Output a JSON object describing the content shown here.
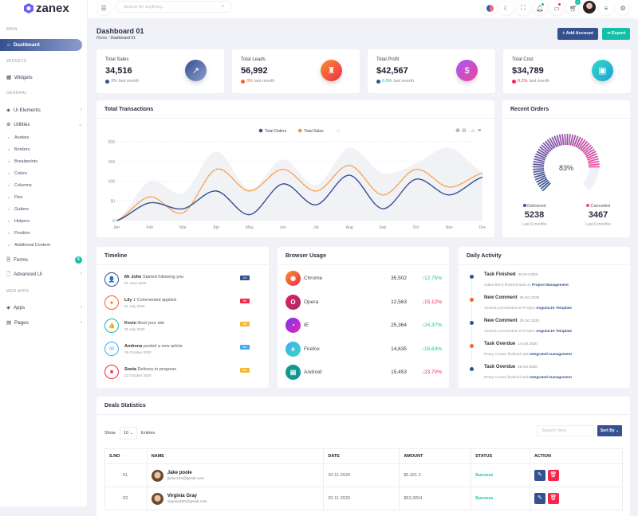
{
  "brand": {
    "name": "zanex",
    "color": "#6c5ffc"
  },
  "colors": {
    "primary": "#35518f",
    "accent": "#f7922d",
    "success": "#13bfa6",
    "danger": "#f3294b"
  },
  "sidebar": {
    "sections": {
      "main": "MAIN",
      "widgets": "WIDGETS",
      "general": "GENERAL",
      "webapps": "WEB APPS"
    },
    "items": {
      "dashboard": "Dashboard",
      "widgets": "Widgets",
      "ui": "Ui Elements",
      "utilities": "Utilities",
      "forms": "Forms",
      "forms_badge": "6",
      "advanced": "Advanced Ui",
      "apps": "Apps",
      "pages": "Pages"
    },
    "utilities_sub": [
      "Avatars",
      "Borders",
      "Breakpoints",
      "Colors",
      "Columns",
      "Flex",
      "Gutters",
      "Helpers",
      "Position",
      "Additional Content"
    ]
  },
  "header": {
    "search_placeholder": "Search for anything...",
    "cart_badge": "5"
  },
  "page": {
    "title": "Dashboard 01",
    "breadcrumb": [
      "Home",
      "Dashboard 01"
    ],
    "add_account": "+ Add Account",
    "export": "Export"
  },
  "stats": [
    {
      "label": "Total Sales",
      "value": "34,516",
      "change": "3%",
      "suffix": "last month",
      "icon": "trending-up-icon"
    },
    {
      "label": "Total Leads",
      "value": "56,992",
      "change": "3%",
      "suffix": "last month",
      "icon": "rocket-icon"
    },
    {
      "label": "Total Profit",
      "value": "$42,567",
      "change": "0.5%",
      "suffix": "last month",
      "icon": "dollar-icon"
    },
    {
      "label": "Total Cost",
      "value": "$34,789",
      "change": "0.2%",
      "suffix": "last month",
      "icon": "briefcase-icon"
    }
  ],
  "transactions": {
    "title": "Total Transactions"
  },
  "chart_data": {
    "type": "line",
    "categories": [
      "Jan",
      "Feb",
      "Mar",
      "Apr",
      "May",
      "Jun",
      "Jul",
      "Aug",
      "Sep",
      "Oct",
      "Nov",
      "Dec"
    ],
    "ylim": [
      0,
      200
    ],
    "yticks": [
      0,
      50,
      100,
      150,
      200
    ],
    "grid": true,
    "legend": "top-center",
    "series": [
      {
        "name": "Total Orders",
        "color": "#35518f",
        "values": [
          0,
          45,
          30,
          75,
          15,
          93,
          40,
          115,
          30,
          105,
          65,
          110
        ]
      },
      {
        "name": "Total Sales",
        "color": "#f7922d",
        "dashed": true,
        "values": [
          0,
          60,
          20,
          130,
          75,
          130,
          75,
          140,
          65,
          130,
          85,
          120
        ]
      },
      {
        "name": "",
        "color": "#f1f2f6",
        "area": true,
        "values": [
          0,
          100,
          70,
          175,
          80,
          155,
          90,
          185,
          120,
          145,
          185,
          125
        ]
      }
    ]
  },
  "recent_orders": {
    "title": "Recent Orders",
    "percent": 83,
    "percent_label": "83%",
    "delivered_label": "Delivered",
    "delivered": "5238",
    "cancelled_label": "Cancelled",
    "cancelled": "3467",
    "period": "Last 6 months"
  },
  "timeline": {
    "title": "Timeline",
    "items": [
      {
        "name": "Mr John",
        "text": "Started following you",
        "date": "01 June 2020",
        "badge": "1m",
        "color": "#35518f",
        "icon": "user-plus-icon",
        "glyph": "👤"
      },
      {
        "name": "Lily",
        "text": "1 Commented applied",
        "date": "01 July 2020",
        "badge": "5m",
        "color": "#f7622d",
        "icon": "comment-icon",
        "glyph": "●"
      },
      {
        "name": "Kevin",
        "text": "liked your site",
        "date": "05 July 2020",
        "badge": "5m",
        "color": "#13bfa6",
        "icon": "thumbs-up-icon",
        "glyph": "👍"
      },
      {
        "name": "Andrena",
        "text": "posted a new article",
        "date": "09 October 2020",
        "badge": "5m",
        "color": "#45aaf2",
        "icon": "mail-icon",
        "glyph": "✉"
      },
      {
        "name": "Sonia",
        "text": "Delivery in progress",
        "date": "12 October 2020",
        "badge": "5m",
        "color": "#f3294b",
        "icon": "shopping-bag-icon",
        "glyph": "■"
      }
    ]
  },
  "timeline_badge_colors": [
    "#35518f",
    "#f3294b",
    "#f7b731",
    "#45aaf2",
    "#f7b731"
  ],
  "browser": {
    "title": "Browser Usage",
    "items": [
      {
        "name": "Chrome",
        "value": "35,502",
        "change": "12.75%",
        "up": true,
        "bg": "linear-gradient(135deg,#f7922d,#f3294b)",
        "glyph": "◉"
      },
      {
        "name": "Opera",
        "value": "12,563",
        "change": "15.12%",
        "up": false,
        "bg": "linear-gradient(135deg,#e0245e,#a42b6b)",
        "glyph": "O"
      },
      {
        "name": "IE",
        "value": "25,364",
        "change": "24.37%",
        "up": true,
        "bg": "linear-gradient(135deg,#7b2ff7,#e02fb0)",
        "glyph": "◔"
      },
      {
        "name": "Firefox",
        "value": "14,635",
        "change": "15,63%",
        "up": true,
        "bg": "linear-gradient(135deg,#45aaf2,#36d7c4)",
        "glyph": "e"
      },
      {
        "name": "Android",
        "value": "15,453",
        "change": "23.70%",
        "up": false,
        "bg": "linear-gradient(135deg,#0e9f8a,#138f99)",
        "glyph": "▤"
      }
    ]
  },
  "activity": {
    "title": "Daily Activity",
    "items": [
      {
        "title": "Task Finished",
        "date": "29 Oct 2020",
        "text": "Adam Berry finished task on",
        "link": "Project Management",
        "color": "#35518f"
      },
      {
        "title": "New Comment",
        "date": "25 Oct 2020",
        "text": "Victoria commented on Project",
        "link": "AngularJS Template",
        "color": "#f7622d"
      },
      {
        "title": "New Comment",
        "date": "25 Oct 2020",
        "text": "Victoria commented on Project",
        "link": "AngularJS Template",
        "color": "#35518f"
      },
      {
        "title": "Task Overdue",
        "date": "14 Oct 2020",
        "text": "Petey Cruiser finished task",
        "link": "Integrated management",
        "color": "#f7622d"
      },
      {
        "title": "Task Overdue",
        "date": "29 Oct 2020",
        "text": "Petey Cruiser finished task",
        "link": "Integrated management",
        "color": "#35518f"
      }
    ]
  },
  "deals": {
    "title": "Deals Statistics",
    "show": "Show",
    "entries_value": "10",
    "entries": "Entries",
    "search_placeholder": "Search Here",
    "sort": "Sort By",
    "columns": [
      "S.NO",
      "NAME",
      "DATE",
      "AMOUNT",
      "STATUS",
      "ACTION"
    ],
    "rows": [
      {
        "no": "01.",
        "name": "Jake poole",
        "email": "jacke123@gmail.com",
        "date": "20-11-2020",
        "amount": "$5.321.2",
        "status": "Success"
      },
      {
        "no": "02.",
        "name": "Virginia Gray",
        "email": "virginia456@gmail.com",
        "date": "20-11-2020",
        "amount": "$53,3654",
        "status": "Success"
      }
    ]
  }
}
